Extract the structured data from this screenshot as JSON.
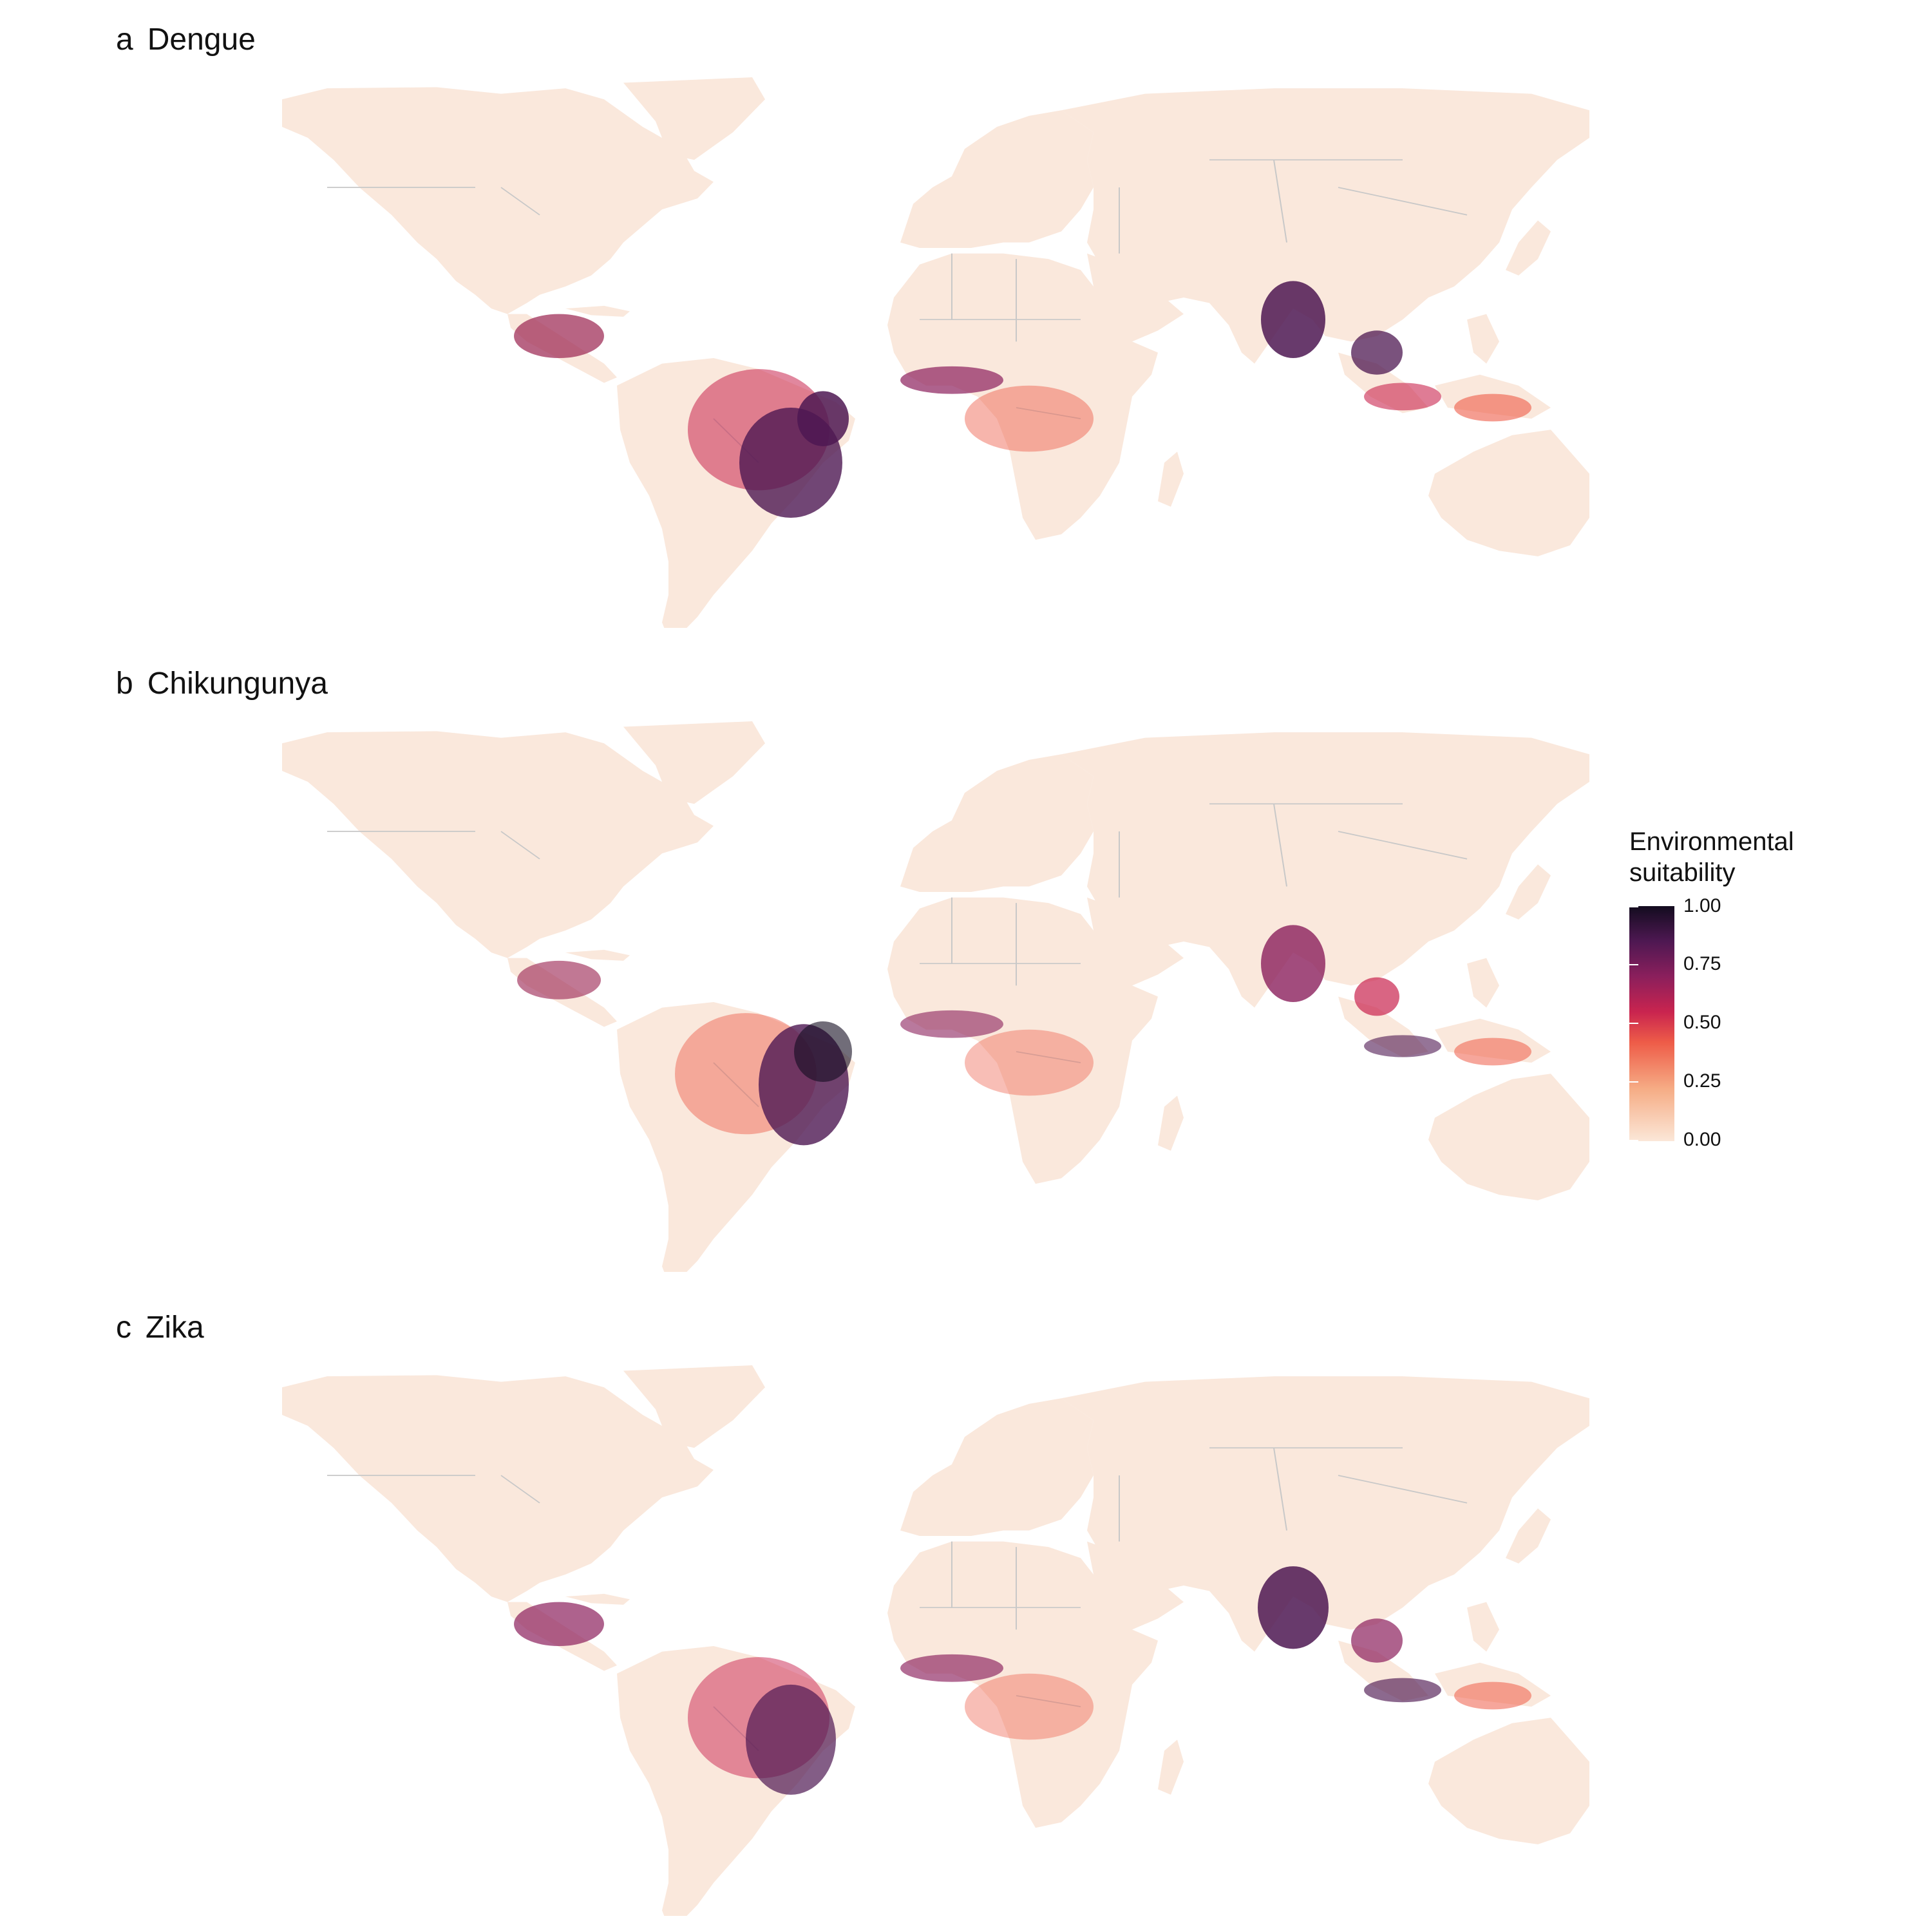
{
  "panels": [
    {
      "letter": "a",
      "title": "Dengue"
    },
    {
      "letter": "b",
      "title": "Chikungunya"
    },
    {
      "letter": "c",
      "title": "Zika"
    }
  ],
  "legend": {
    "title_line1": "Environmental",
    "title_line2": "suitability",
    "ticks": [
      "1.00",
      "0.75",
      "0.50",
      "0.25",
      "0.00"
    ]
  },
  "colors": {
    "land": "#fae8dc",
    "border": "#c8c8c8",
    "scale_low": "#fbe7d8",
    "scale_mid": "#e8414c",
    "scale_high": "#130c1f"
  }
}
